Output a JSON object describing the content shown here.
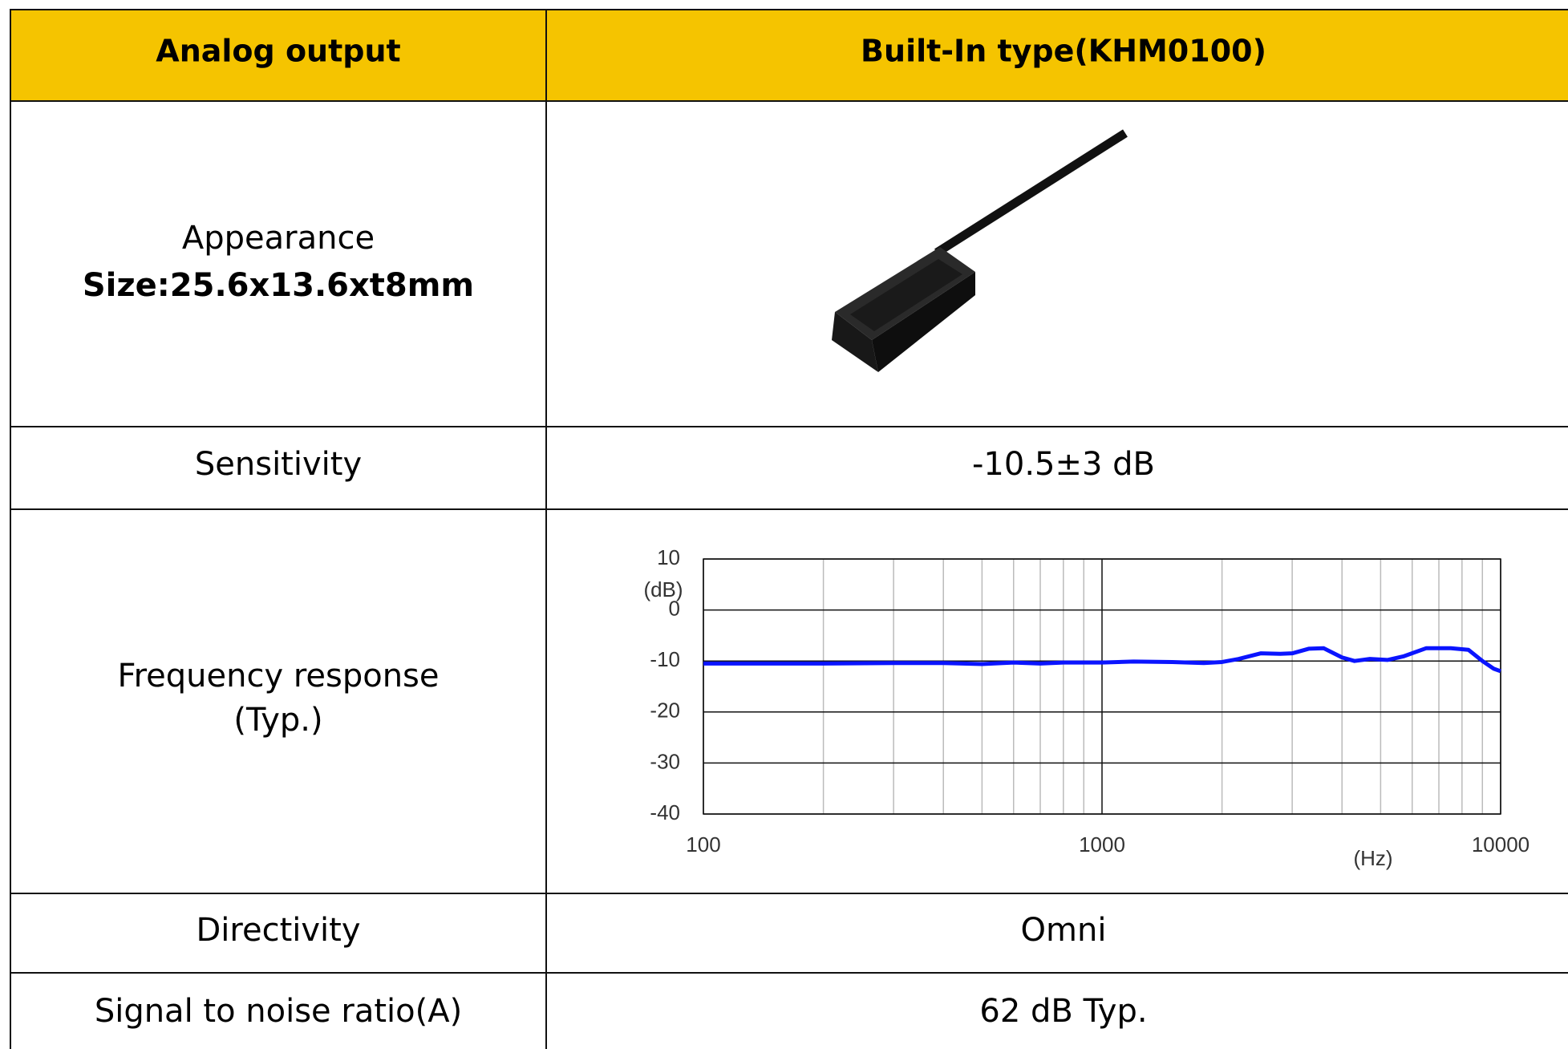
{
  "table": {
    "header": [
      "Analog output",
      "Built-In type(KHM0100)"
    ],
    "rows": [
      {
        "label": "Appearance",
        "sublabel": "Size:25.6x13.6xt8mm"
      },
      {
        "label": "Sensitivity",
        "value": "-10.5±3 dB"
      },
      {
        "label": "Frequency response",
        "sublabel": "(Typ.)"
      },
      {
        "label": "Directivity",
        "value": "Omni"
      },
      {
        "label": "Signal to noise ratio(A)",
        "value": "62 dB Typ."
      }
    ]
  },
  "chart_data": {
    "type": "line",
    "x_label": "(Hz)",
    "y_label": "(dB)",
    "x": [
      100,
      150,
      200,
      300,
      400,
      500,
      600,
      700,
      800,
      1000,
      1200,
      1500,
      1800,
      2000,
      2200,
      2500,
      2800,
      3000,
      3300,
      3600,
      4000,
      4300,
      4700,
      5200,
      5700,
      6500,
      7500,
      8300,
      9000,
      9600,
      10000
    ],
    "values": [
      -10.5,
      -10.5,
      -10.5,
      -10.4,
      -10.4,
      -10.6,
      -10.3,
      -10.5,
      -10.3,
      -10.3,
      -10.1,
      -10.2,
      -10.4,
      -10.2,
      -9.6,
      -8.5,
      -8.6,
      -8.5,
      -7.6,
      -7.5,
      -9.3,
      -10,
      -9.6,
      -9.8,
      -9.1,
      -7.5,
      -7.5,
      -7.8,
      -10,
      -11.5,
      -12
    ],
    "color": "#0a14ff",
    "xlim": [
      100,
      10000
    ],
    "xticks": [
      100,
      1000,
      10000
    ],
    "log_x": true,
    "ylim": [
      -40,
      10
    ],
    "yticks": [
      10,
      0,
      -10,
      -20,
      -30,
      -40
    ],
    "grid": true
  }
}
